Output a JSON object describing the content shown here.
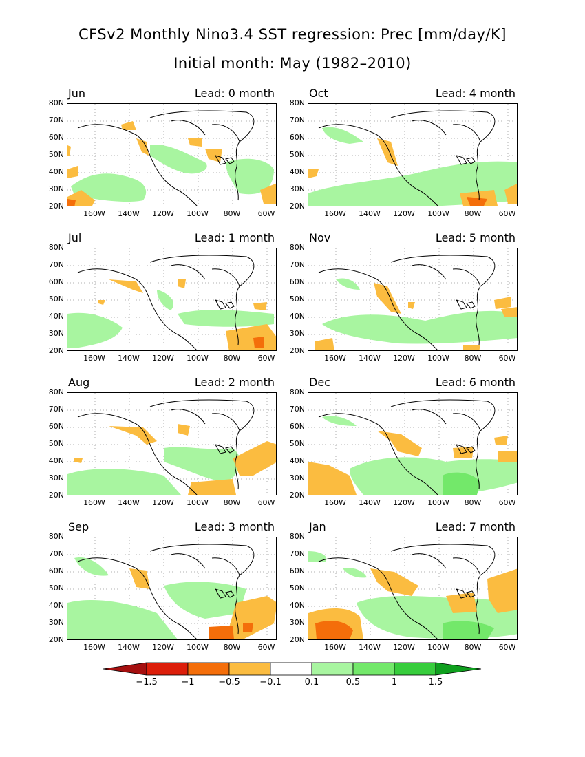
{
  "title_line1": "CFSv2 Monthly Nino3.4 SST regression: Prec [mm/day/K]",
  "title_line2": "Initial month: May (1982–2010)",
  "lat_labels": [
    "80N",
    "70N",
    "60N",
    "50N",
    "40N",
    "30N",
    "20N"
  ],
  "lon_labels": [
    "160W",
    "140W",
    "120W",
    "100W",
    "80W",
    "60W"
  ],
  "panels": [
    {
      "month": "Jun",
      "lead": "Lead: 0 month"
    },
    {
      "month": "Oct",
      "lead": "Lead: 4 month"
    },
    {
      "month": "Jul",
      "lead": "Lead: 1 month"
    },
    {
      "month": "Nov",
      "lead": "Lead: 5 month"
    },
    {
      "month": "Aug",
      "lead": "Lead: 2 month"
    },
    {
      "month": "Dec",
      "lead": "Lead: 6 month"
    },
    {
      "month": "Sep",
      "lead": "Lead: 3 month"
    },
    {
      "month": "Jan",
      "lead": "Lead: 7 month"
    }
  ],
  "colorbar": {
    "labels": [
      "−1.5",
      "−1",
      "−0.5",
      "−0.1",
      "0.1",
      "0.5",
      "1",
      "1.5"
    ],
    "colors": [
      "#a50f0f",
      "#dc1e0a",
      "#f46e0a",
      "#fbbc40",
      "#ffffff",
      "#a8f5a0",
      "#73e86a",
      "#37cd3c",
      "#0f9f1e"
    ]
  },
  "colors": {
    "dry": "#fbbc40",
    "dry_strong": "#f46e0a",
    "wet": "#a8f5a0",
    "wet_strong": "#73e86a"
  }
}
